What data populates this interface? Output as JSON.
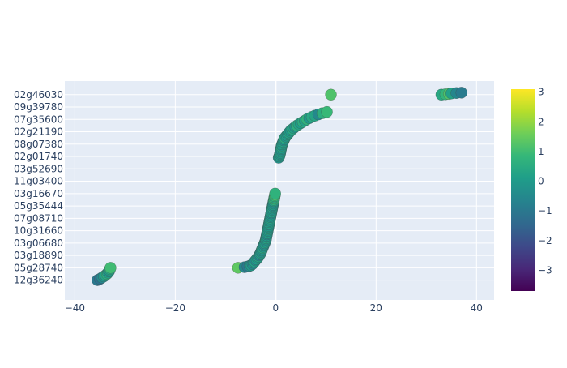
{
  "chart_data": {
    "type": "scatter",
    "title": "",
    "xlabel": "",
    "ylabel": "",
    "xlim": [
      -42,
      43.5
    ],
    "x_ticks": [
      -40,
      -20,
      0,
      20,
      40
    ],
    "x_tick_labels": [
      "−40",
      "−20",
      "0",
      "20",
      "40"
    ],
    "y_tick_labels": [
      "12g36240",
      "05g28740",
      "03g18890",
      "03g06680",
      "10g31660",
      "07g08710",
      "05g35444",
      "03g16670",
      "11g03400",
      "03g52690",
      "02g01740",
      "08g07380",
      "02g21190",
      "07g35600",
      "09g39780",
      "02g46030"
    ],
    "y_tick_positions": [
      0,
      10,
      20,
      30,
      40,
      50,
      60,
      70,
      80,
      90,
      100,
      110,
      120,
      130,
      140,
      150
    ],
    "ylim": [
      -16,
      161
    ],
    "grid": true,
    "colorscale": "Viridis",
    "color_range": [
      -3.7,
      3.1
    ],
    "colorbar_ticks": [
      3,
      2,
      1,
      0,
      -1,
      -2,
      -3
    ],
    "colorbar_tick_labels": [
      "3",
      "2",
      "1",
      "0",
      "−1",
      "−2",
      "−3"
    ],
    "series": [
      {
        "x": [
          -35.5,
          -35.0,
          -34.6,
          -34.2,
          -33.9,
          -33.6,
          -33.4,
          -33.2,
          -33.1,
          -33.0,
          -32.9
        ],
        "y": [
          0,
          1,
          2,
          3,
          4,
          5,
          6,
          7,
          8,
          9,
          10
        ],
        "color": [
          -1.0,
          -1.2,
          -0.6,
          -0.2,
          0.3,
          0.6,
          0.2,
          -0.3,
          0.1,
          0.4,
          1.0
        ]
      },
      {
        "x": [
          -7.5,
          -6.2,
          -5.6,
          -5.2,
          -4.9,
          -4.6,
          -4.4,
          -4.2,
          -4.0,
          -3.8,
          -3.6,
          -3.4,
          -3.3,
          -3.1,
          -3.0,
          -2.9,
          -2.8,
          -2.7,
          -2.6,
          -2.5,
          -2.4,
          -2.3,
          -2.2,
          -2.1,
          -2.0,
          -1.95,
          -1.9,
          -1.85,
          -1.8,
          -1.75,
          -1.7,
          -1.65,
          -1.6,
          -1.55,
          -1.5,
          -1.45,
          -1.4,
          -1.35,
          -1.3,
          -1.25,
          -1.2,
          -1.15,
          -1.1,
          -1.05,
          -1.0,
          -0.95,
          -0.9,
          -0.85,
          -0.8,
          -0.75,
          -0.7,
          -0.65,
          -0.6,
          -0.55,
          -0.5,
          -0.45,
          -0.4,
          -0.35,
          -0.3,
          -0.25,
          -0.2,
          -0.15,
          -0.1,
          0.6,
          0.7,
          0.8,
          0.85,
          0.9,
          0.95,
          1.0,
          1.05,
          1.1,
          1.15,
          1.2,
          1.3,
          1.4,
          1.5,
          1.6,
          1.7,
          1.8,
          2.0,
          2.2,
          2.4,
          2.6,
          2.8,
          3.0,
          3.3,
          3.6,
          3.9,
          4.2,
          4.6,
          5.0,
          5.4,
          5.8,
          6.2,
          6.7,
          7.2,
          7.8,
          8.5,
          9.3,
          10.2,
          11.0
        ],
        "y": [
          10,
          10.5,
          11,
          11.5,
          12,
          13,
          14,
          15,
          16,
          17,
          18,
          19,
          20,
          21,
          22,
          23,
          24,
          25,
          26,
          27,
          28,
          29,
          30,
          31,
          32,
          33,
          34,
          35,
          36,
          37,
          38,
          39,
          40,
          41,
          42,
          43,
          44,
          45,
          46,
          47,
          48,
          49,
          50,
          51,
          52,
          53,
          54,
          55,
          56,
          57,
          58,
          59,
          60,
          61,
          62,
          63,
          64,
          65,
          66,
          67,
          68,
          69,
          70,
          99,
          100,
          101,
          102,
          103,
          104,
          105,
          106,
          107,
          108,
          109,
          110,
          111,
          112,
          113,
          114,
          115,
          116,
          117,
          118,
          119,
          120,
          121,
          122,
          123,
          124,
          125,
          126,
          127,
          128,
          129,
          130,
          131,
          132,
          133,
          134,
          135,
          136,
          150
        ],
        "color": [
          1.4,
          -0.6,
          -1.0,
          -0.3,
          0.0,
          -0.5,
          -0.2,
          0.2,
          -0.4,
          0.1,
          -0.1,
          0.3,
          -0.6,
          0.0,
          0.2,
          -0.3,
          0.1,
          -0.2,
          0.4,
          -0.1,
          0.0,
          -0.4,
          0.2,
          0.1,
          -0.3,
          0.0,
          0.3,
          -0.2,
          0.1,
          -0.5,
          0.2,
          0.0,
          -0.1,
          0.3,
          -0.2,
          0.1,
          0.0,
          -0.3,
          0.2,
          0.1,
          -0.1,
          0.0,
          0.3,
          -0.2,
          0.1,
          0.0,
          -0.4,
          0.2,
          0.1,
          -0.1,
          0.0,
          0.3,
          -0.2,
          0.1,
          0.0,
          -0.3,
          0.2,
          0.6,
          0.9,
          0.4,
          0.8,
          1.1,
          0.7,
          -0.2,
          0.0,
          0.2,
          -0.1,
          0.1,
          0.3,
          -0.2,
          0.0,
          0.1,
          0.4,
          -0.1,
          0.2,
          0.0,
          0.3,
          -0.2,
          0.1,
          0.5,
          0.0,
          0.2,
          -0.1,
          0.3,
          0.1,
          0.0,
          0.4,
          0.2,
          -0.1,
          0.6,
          0.3,
          0.1,
          0.5,
          0.2,
          0.7,
          0.0,
          0.4,
          0.3,
          -0.5,
          0.6,
          0.9,
          1.2
        ]
      },
      {
        "x": [
          33.0,
          33.8,
          34.5,
          35.0,
          36.0,
          37.0
        ],
        "y": [
          150,
          150.3,
          150.6,
          151,
          151.3,
          151.6
        ],
        "color": [
          0.4,
          0.8,
          1.2,
          0.2,
          -0.6,
          -0.9
        ]
      }
    ]
  }
}
